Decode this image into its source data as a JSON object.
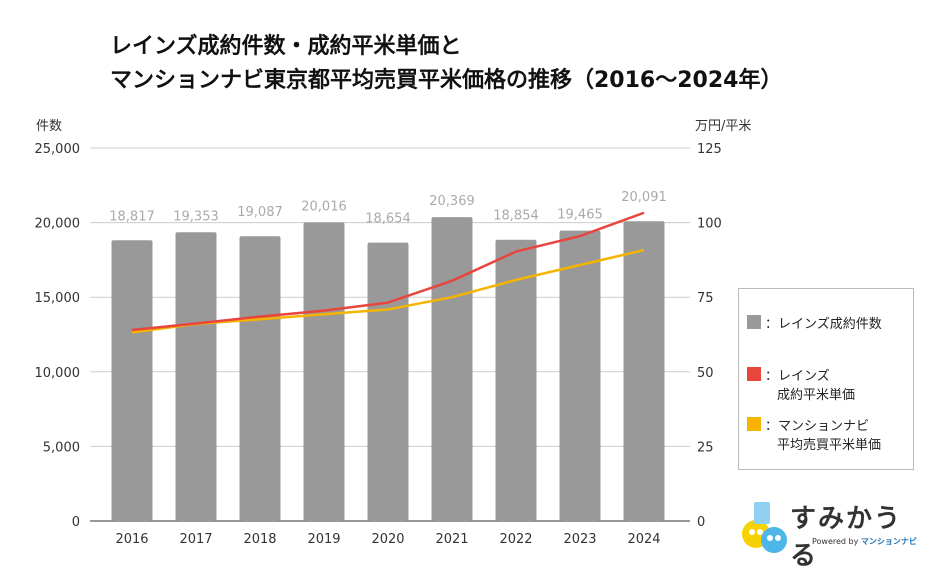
{
  "title_line1": "レインズ成約件数・成約平米単価と",
  "title_line2": "マンションナビ東京都平均売買平米価格の推移（2016〜2024年）",
  "chart_data": {
    "type": "bar+line",
    "categories": [
      "2016",
      "2017",
      "2018",
      "2019",
      "2020",
      "2021",
      "2022",
      "2023",
      "2024"
    ],
    "y_left": {
      "label": "件数",
      "lim": [
        0,
        25000
      ],
      "ticks": [
        "0",
        "5,000",
        "10,000",
        "15,000",
        "20,000",
        "25,000"
      ],
      "tick_values": [
        0,
        5000,
        10000,
        15000,
        20000,
        25000
      ]
    },
    "y_right": {
      "label": "万円/平米",
      "lim": [
        0,
        125
      ],
      "ticks": [
        "0",
        "25",
        "50",
        "75",
        "100",
        "125"
      ],
      "tick_values": [
        0,
        25,
        50,
        75,
        100,
        125
      ]
    },
    "grid": true,
    "legend_placement": "right",
    "series": [
      {
        "name": "レインズ成約件数",
        "kind": "bar",
        "axis": "left",
        "color": "#999999",
        "values": [
          18817,
          19353,
          19087,
          20016,
          18654,
          20369,
          18854,
          19465,
          20091
        ],
        "labels": [
          "18,817",
          "19,353",
          "19,087",
          "20,016",
          "18,654",
          "20,369",
          "18,854",
          "19,465",
          "20,091"
        ]
      },
      {
        "name": "レインズ成約平米単価",
        "kind": "line",
        "axis": "right",
        "color": "#e8453c",
        "values": [
          64.0,
          66.2,
          68.5,
          70.5,
          73.2,
          80.5,
          90.3,
          95.5,
          103.3
        ]
      },
      {
        "name": "マンションナビ平均売買平米単価",
        "kind": "line",
        "axis": "right",
        "color": "#f4b400",
        "values": [
          63.2,
          66.0,
          67.6,
          69.3,
          70.9,
          75.0,
          80.8,
          85.8,
          90.8
        ]
      }
    ]
  },
  "legend": [
    {
      "line1": "：レインズ成約件数",
      "line2": "",
      "color": "#999999"
    },
    {
      "line1": "：レインズ",
      "line2": "成約平米単価",
      "color": "#e8453c"
    },
    {
      "line1": "：マンションナビ",
      "line2": "平均売買平米単価",
      "color": "#f4b400"
    }
  ],
  "logo": {
    "text": "すみかうる",
    "powered": "Powered by",
    "brand": "マンションナビ"
  }
}
